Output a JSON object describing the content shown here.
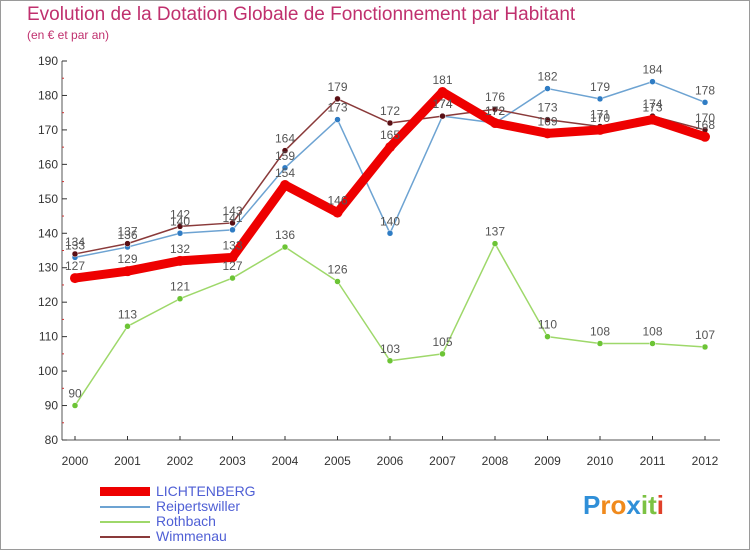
{
  "title": "Evolution de la Dotation Globale de Fonctionnement par Habitant",
  "subtitle": "(en € et par an)",
  "brand": "Proxiti",
  "brand_letters": [
    {
      "ch": "P",
      "color": "#2f8fd8"
    },
    {
      "ch": "r",
      "color": "#f08a1c"
    },
    {
      "ch": "o",
      "color": "#f08a1c"
    },
    {
      "ch": "x",
      "color": "#2f8fd8"
    },
    {
      "ch": "i",
      "color": "#7cc243"
    },
    {
      "ch": "t",
      "color": "#7cc243"
    },
    {
      "ch": "i",
      "color": "#e0402a"
    }
  ],
  "chart_data": {
    "type": "line",
    "title": "Evolution de la Dotation Globale de Fonctionnement par Habitant",
    "subtitle": "(en € et par an)",
    "xlabel": "",
    "ylabel": "",
    "ylim": [
      80,
      190
    ],
    "yticks": [
      80,
      90,
      100,
      110,
      120,
      130,
      140,
      150,
      160,
      170,
      180,
      190
    ],
    "grid": false,
    "legend_position": "bottom-left",
    "categories": [
      "2000",
      "2001",
      "2002",
      "2003",
      "2004",
      "2005",
      "2006",
      "2007",
      "2008",
      "2009",
      "2010",
      "2011",
      "2012"
    ],
    "series": [
      {
        "name": "Rothbach",
        "color": "#9ed86a",
        "marker": "#6cc435",
        "values": [
          90,
          113,
          121,
          127,
          136,
          126,
          103,
          105,
          137,
          110,
          108,
          108,
          107
        ],
        "labels": [
          "90",
          "113",
          "121",
          "127",
          "136",
          "126",
          "103",
          "105",
          "137",
          "110",
          "108",
          "108",
          "107"
        ]
      },
      {
        "name": "Reipertswiller",
        "color": "#6da3d2",
        "marker": "#2f7cc4",
        "values": [
          133,
          136,
          140,
          141,
          159,
          173,
          140,
          174,
          172,
          182,
          179,
          184,
          178
        ],
        "labels": [
          "133",
          "136",
          "140",
          "141",
          "159",
          "173",
          "140",
          "174",
          "172",
          "182",
          "179",
          "184",
          "178"
        ]
      },
      {
        "name": "Wimmenau",
        "color": "#8a3a3a",
        "marker": "#5a0f14",
        "values": [
          134,
          137,
          142,
          143,
          164,
          179,
          172,
          174,
          176,
          173,
          171,
          174,
          170
        ],
        "labels": [
          "134",
          "137",
          "142",
          "143",
          "164",
          "179",
          "172",
          "174",
          "176",
          "173",
          "171",
          "174",
          "170"
        ]
      },
      {
        "name": "LICHTENBERG",
        "color": "#ee0000",
        "marker": "#ee0000",
        "values": [
          127,
          129,
          132,
          133,
          154,
          146,
          165,
          181,
          172,
          169,
          170,
          173,
          168
        ],
        "labels": [
          "127",
          "129",
          "132",
          "133",
          "154",
          "146",
          "165",
          "181",
          "172",
          "169",
          "170",
          "173",
          "168"
        ]
      }
    ],
    "legend": [
      "LICHTENBERG",
      "Reipertswiller",
      "Rothbach",
      "Wimmenau"
    ]
  }
}
